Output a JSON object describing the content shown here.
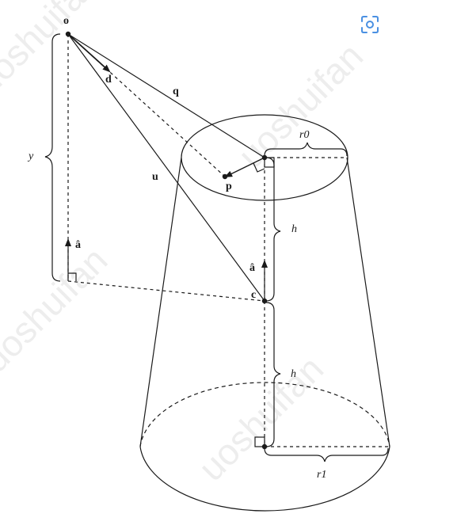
{
  "labels": {
    "o": "o",
    "d": "d",
    "q": "q",
    "u": "u",
    "p": "p",
    "c": "c",
    "y": "y",
    "a_hat_left": "â",
    "a_hat_center": "â",
    "r0": "r0",
    "r1": "r1",
    "h_upper": "h",
    "h_lower": "h"
  },
  "watermarks": [
    "luoshuifan",
    "uoshuifan",
    "luoshuifan",
    "uoshuifan"
  ],
  "toolbar": {
    "icon": "scan-icon",
    "accent": "#4a90e2"
  },
  "colors": {
    "ink": "#1a1a1a",
    "background": "#ffffff"
  }
}
